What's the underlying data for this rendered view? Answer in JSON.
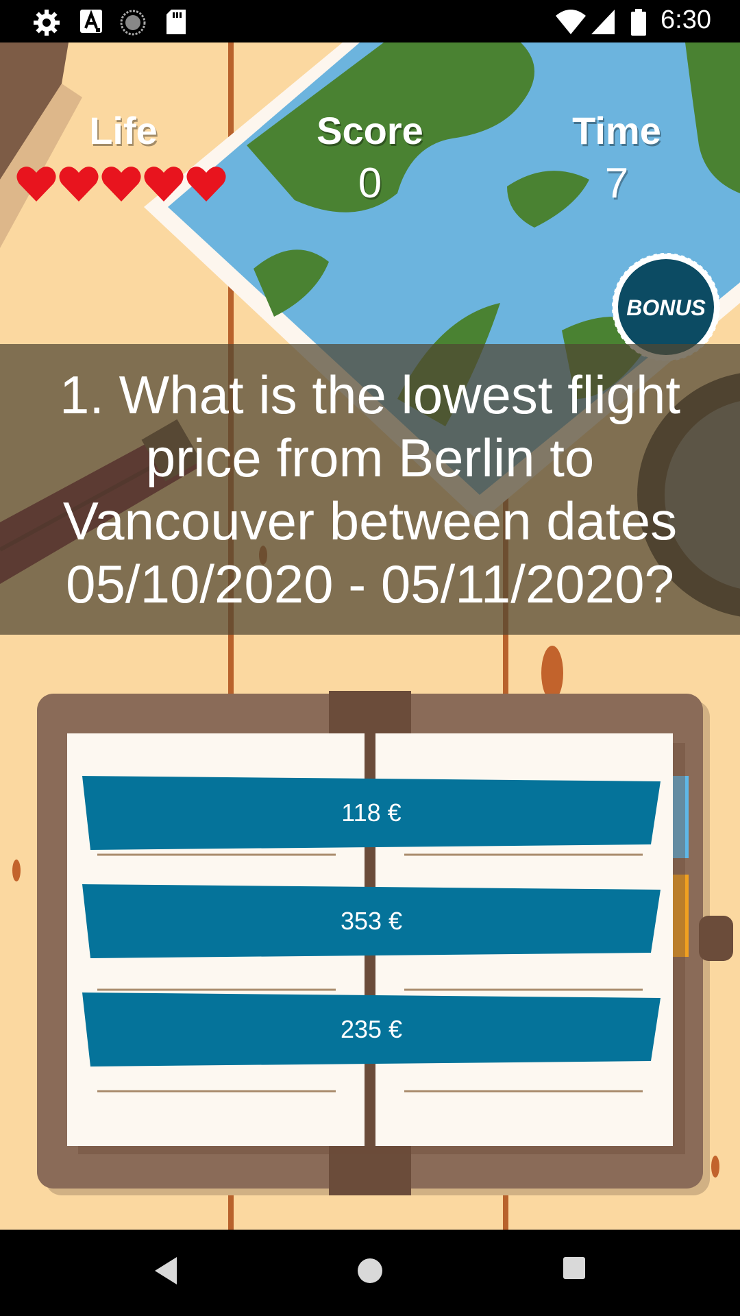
{
  "status_bar": {
    "time": "6:30",
    "icons": [
      "settings-icon",
      "accessibility-a-icon",
      "sync-circle-icon",
      "sd-card-icon",
      "wifi-icon",
      "cell-signal-icon",
      "battery-icon"
    ]
  },
  "hud": {
    "life_label": "Life",
    "lives": 5,
    "score_label": "Score",
    "score": "0",
    "time_label": "Time",
    "time": "7"
  },
  "bonus_badge": {
    "label": "BONUS"
  },
  "question": {
    "text": "1. What is the lowest flight price from Berlin to Vancouver between dates 05/10/2020 - 05/11/2020?"
  },
  "answers": [
    {
      "label": "118 €"
    },
    {
      "label": "353 €"
    },
    {
      "label": "235 €"
    }
  ],
  "nav_bar": {
    "icons": [
      "back-icon",
      "home-icon",
      "recents-icon"
    ]
  },
  "colors": {
    "background": "#fbd8a0",
    "answer_button": "#05739a",
    "heart": "#e8141e",
    "bonus_badge": "#0c4b63",
    "question_overlay": "#50463277"
  }
}
